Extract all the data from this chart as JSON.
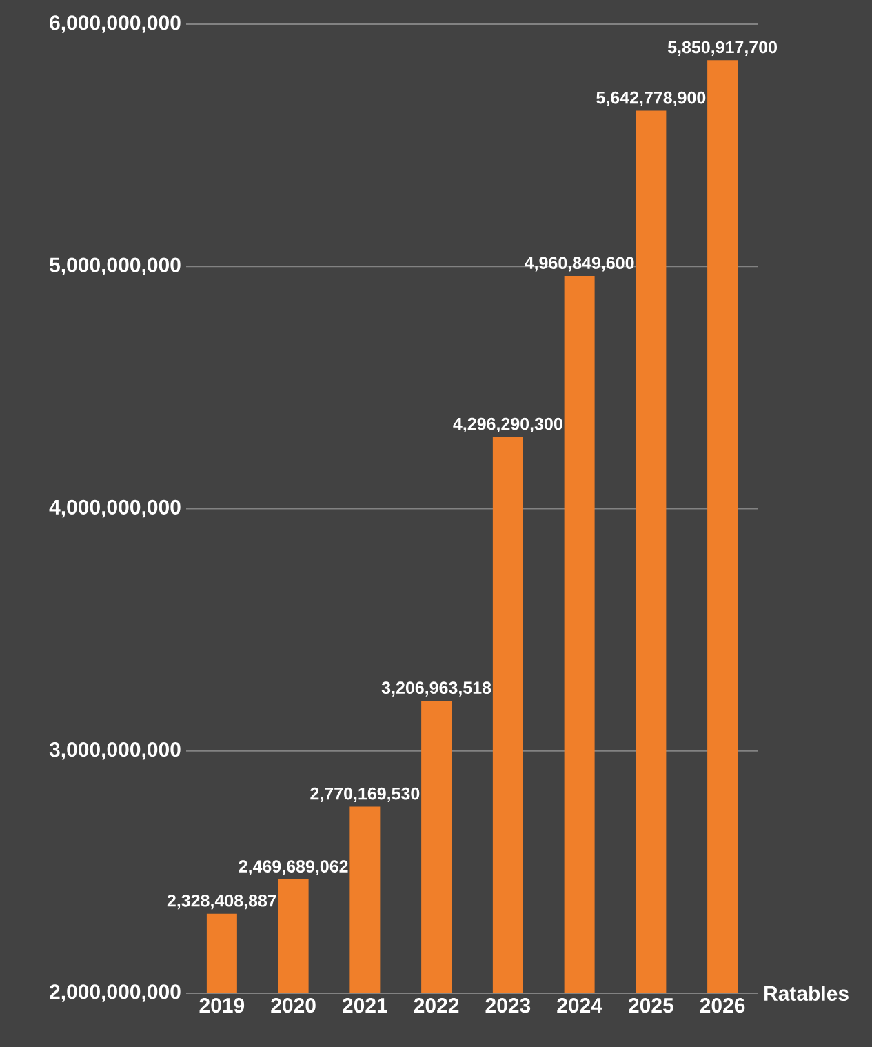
{
  "chart_data": {
    "type": "bar",
    "xlabel": "Ratables",
    "categories": [
      "2019",
      "2020",
      "2021",
      "2022",
      "2023",
      "2024",
      "2025",
      "2026"
    ],
    "values": [
      2328408887,
      2469689062,
      2770169530,
      3206963518,
      4296290300,
      4960849600,
      5642778900,
      5850917700
    ],
    "value_labels": [
      "2,328,408,887",
      "2,469,689,062",
      "2,770,169,530",
      "3,206,963,518",
      "4,296,290,300",
      "4,960,849,600",
      "5,642,778,900",
      "5,850,917,700"
    ],
    "color": "#f07f2a",
    "ylim": [
      2000000000,
      6000000000
    ],
    "yticks": [
      {
        "value": 2000000000,
        "label": "2,000,000,000"
      },
      {
        "value": 3000000000,
        "label": "3,000,000,000"
      },
      {
        "value": 4000000000,
        "label": "4,000,000,000"
      },
      {
        "value": 5000000000,
        "label": "5,000,000,000"
      },
      {
        "value": 6000000000,
        "label": "6,000,000,000"
      }
    ],
    "grid": "y"
  }
}
